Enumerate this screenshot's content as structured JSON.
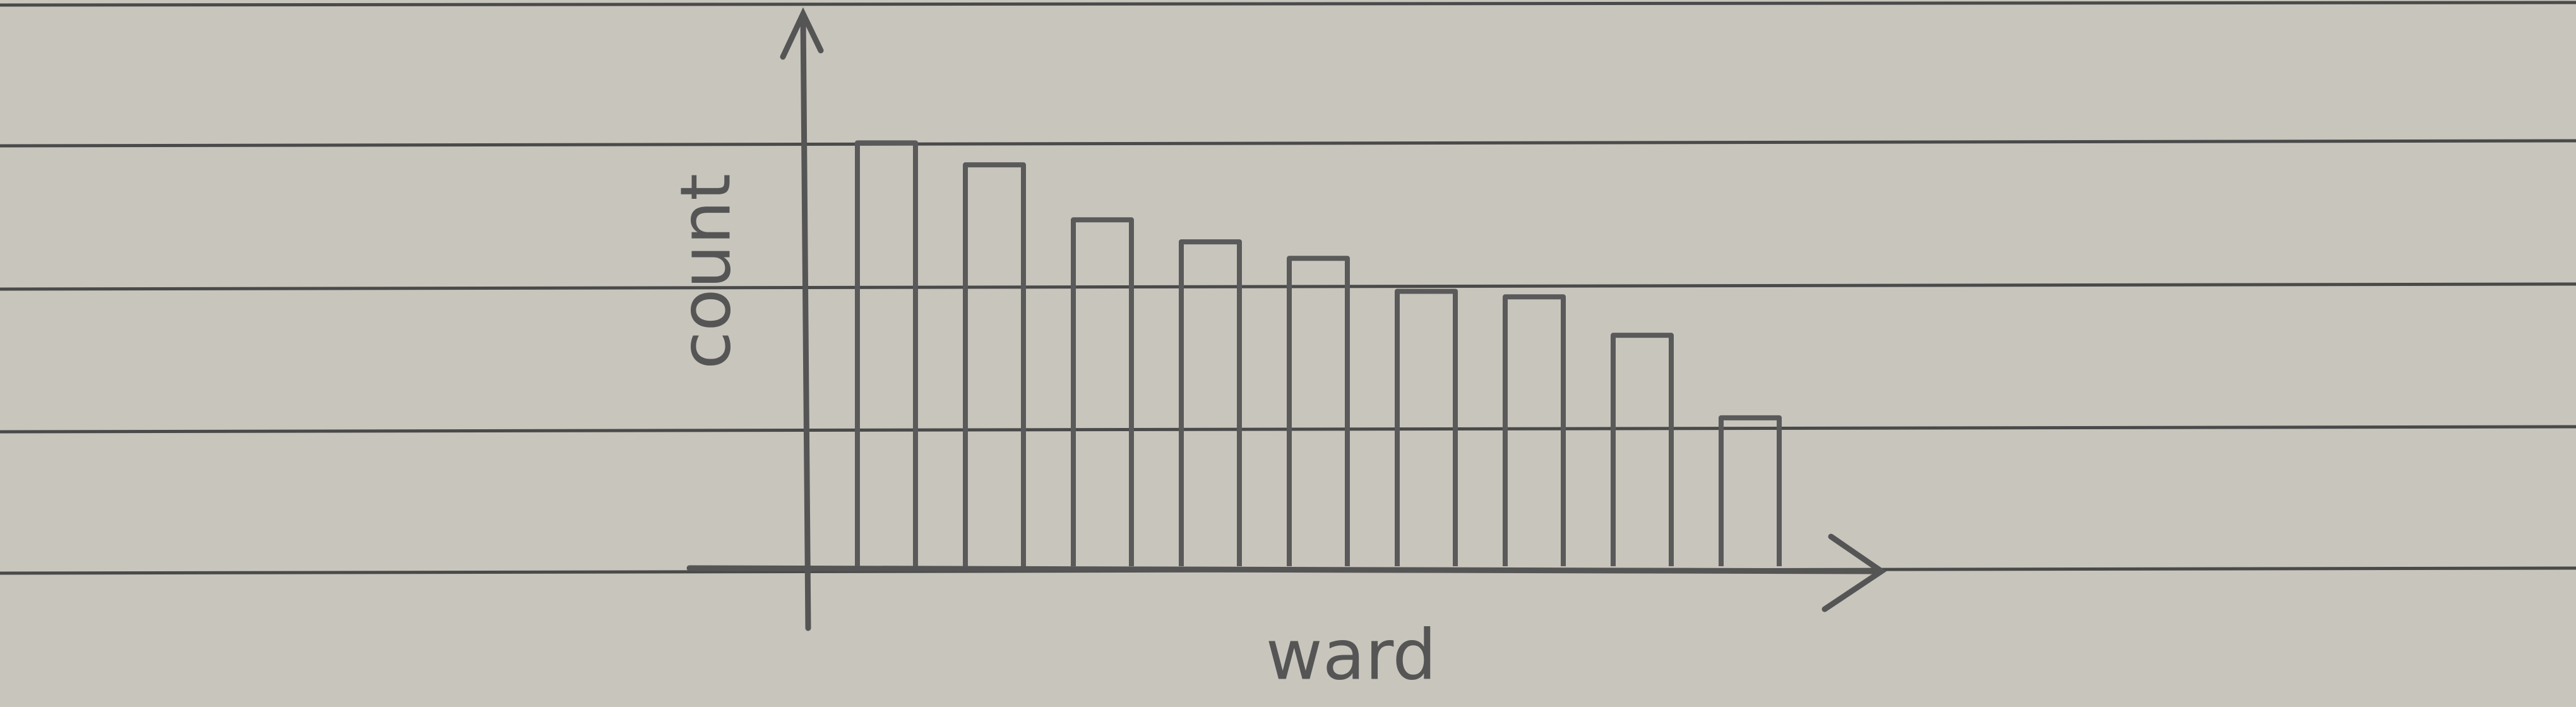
{
  "chart_data": {
    "type": "bar",
    "x_label": "ward",
    "y_label": "count",
    "categories": [
      null,
      null,
      null,
      null,
      null,
      null,
      null,
      null,
      null
    ],
    "values": [
      77,
      73,
      63,
      59,
      56,
      50,
      49,
      42,
      27
    ],
    "color": "#5a5a5a",
    "ylim": [
      0,
      100
    ]
  }
}
